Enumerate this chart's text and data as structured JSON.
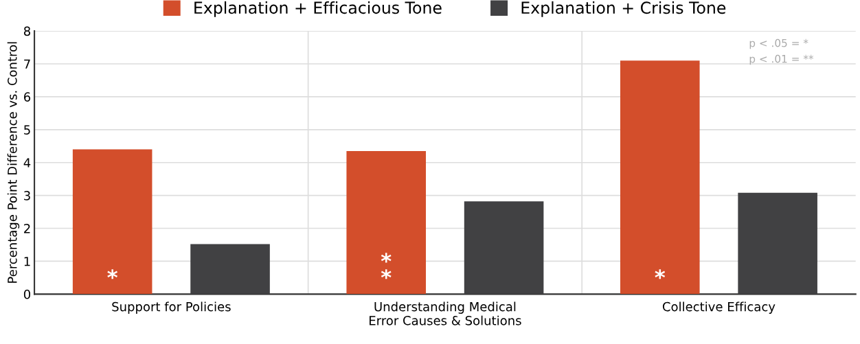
{
  "chart_data": {
    "type": "bar",
    "categories": [
      "Support for Policies",
      "Understanding Medical\nError Causes & Solutions",
      "Collective Efficacy"
    ],
    "series": [
      {
        "name": "Explanation + Efficacious Tone",
        "color": "#d34e2b",
        "values": [
          4.4,
          4.35,
          7.1
        ]
      },
      {
        "name": "Explanation + Crisis Tone",
        "color": "#414143",
        "values": [
          1.52,
          2.82,
          3.08
        ]
      }
    ],
    "ylabel": "Percentage Point Difference vs. Control",
    "ylim": [
      0,
      8
    ],
    "yticks": [
      0,
      1,
      2,
      3,
      4,
      5,
      6,
      7,
      8
    ],
    "grid": true,
    "legend": "top",
    "annotations": [
      "*",
      "*\n*",
      "*",
      "p < .05 = *",
      "p < .01 = **"
    ]
  }
}
